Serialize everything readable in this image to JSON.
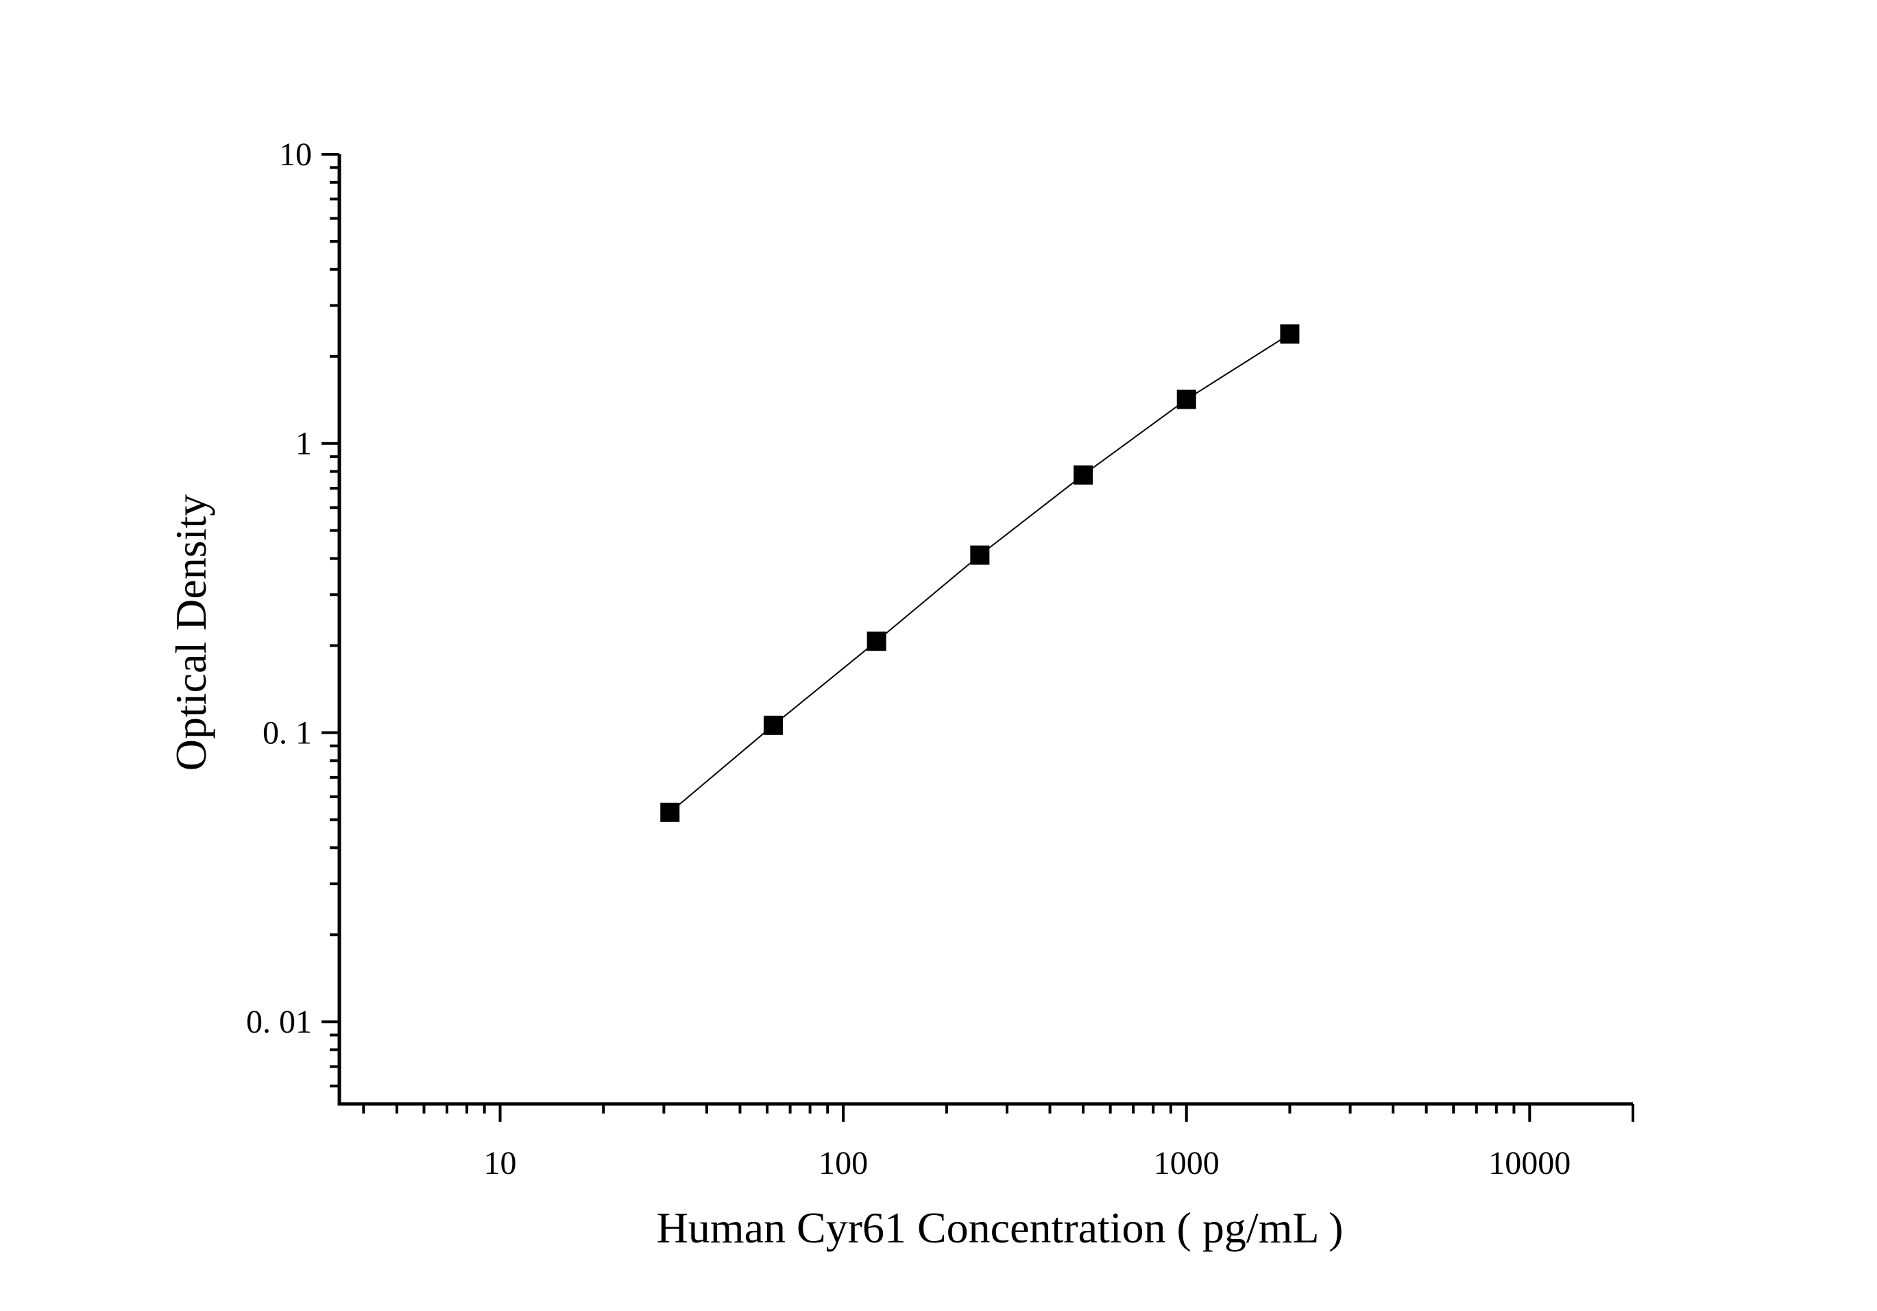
{
  "chart_data": {
    "type": "scatter",
    "xlabel": "Human Cyr61 Concentration ( pg/mL )",
    "ylabel": "Optical Density",
    "x_scale": "log",
    "y_scale": "log",
    "xlim": [
      3.4,
      20000
    ],
    "ylim": [
      0.0052,
      10
    ],
    "x_ticks": [
      10,
      100,
      1000,
      10000
    ],
    "x_tick_labels": [
      "10",
      "100",
      "1000",
      "10000"
    ],
    "y_ticks": [
      0.01,
      0.1,
      1,
      10
    ],
    "y_tick_labels": [
      "0. 01",
      "0. 1",
      "1",
      "10"
    ],
    "grid": false,
    "series": [
      {
        "x": [
          31.25,
          62.5,
          125,
          250,
          500,
          1000,
          2000
        ],
        "y": [
          0.053,
          0.106,
          0.207,
          0.411,
          0.778,
          1.42,
          2.39
        ],
        "marker": "square",
        "line": true,
        "color": "#000000"
      }
    ]
  }
}
